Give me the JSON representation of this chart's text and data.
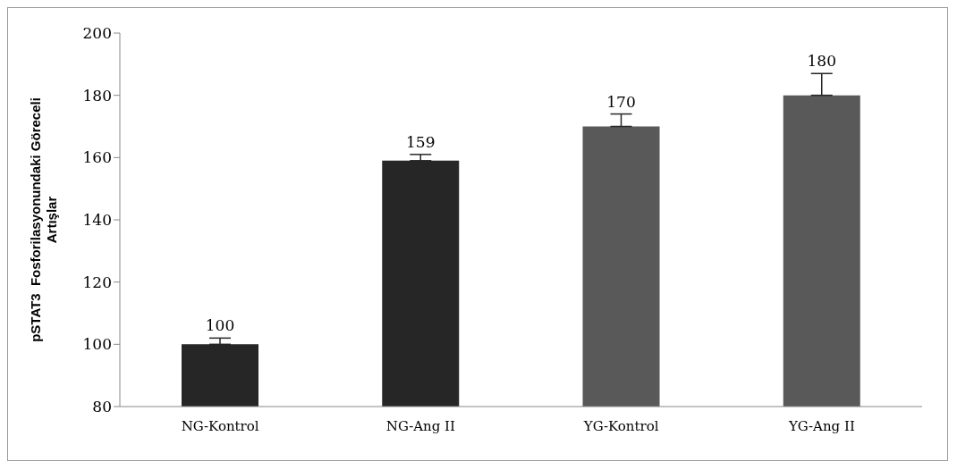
{
  "chart_data": {
    "type": "bar",
    "ylabel": "pSTAT3  Fosforilasyonundaki Göreceli Artışlar",
    "categories": [
      "NG-Kontrol",
      "NG-Ang II",
      "YG-Kontrol",
      "YG-Ang II"
    ],
    "values": [
      100,
      159,
      170,
      180
    ],
    "colors": [
      "#262626",
      "#262626",
      "#595959",
      "#595959"
    ],
    "errors": [
      [
        100,
        102
      ],
      [
        159,
        161
      ],
      [
        170,
        174
      ],
      [
        180,
        187
      ]
    ],
    "data_labels": true,
    "ylim": [
      80,
      200
    ],
    "yticks": [
      80,
      100,
      120,
      140,
      160,
      180,
      200
    ],
    "grid": false,
    "legend": false
  }
}
